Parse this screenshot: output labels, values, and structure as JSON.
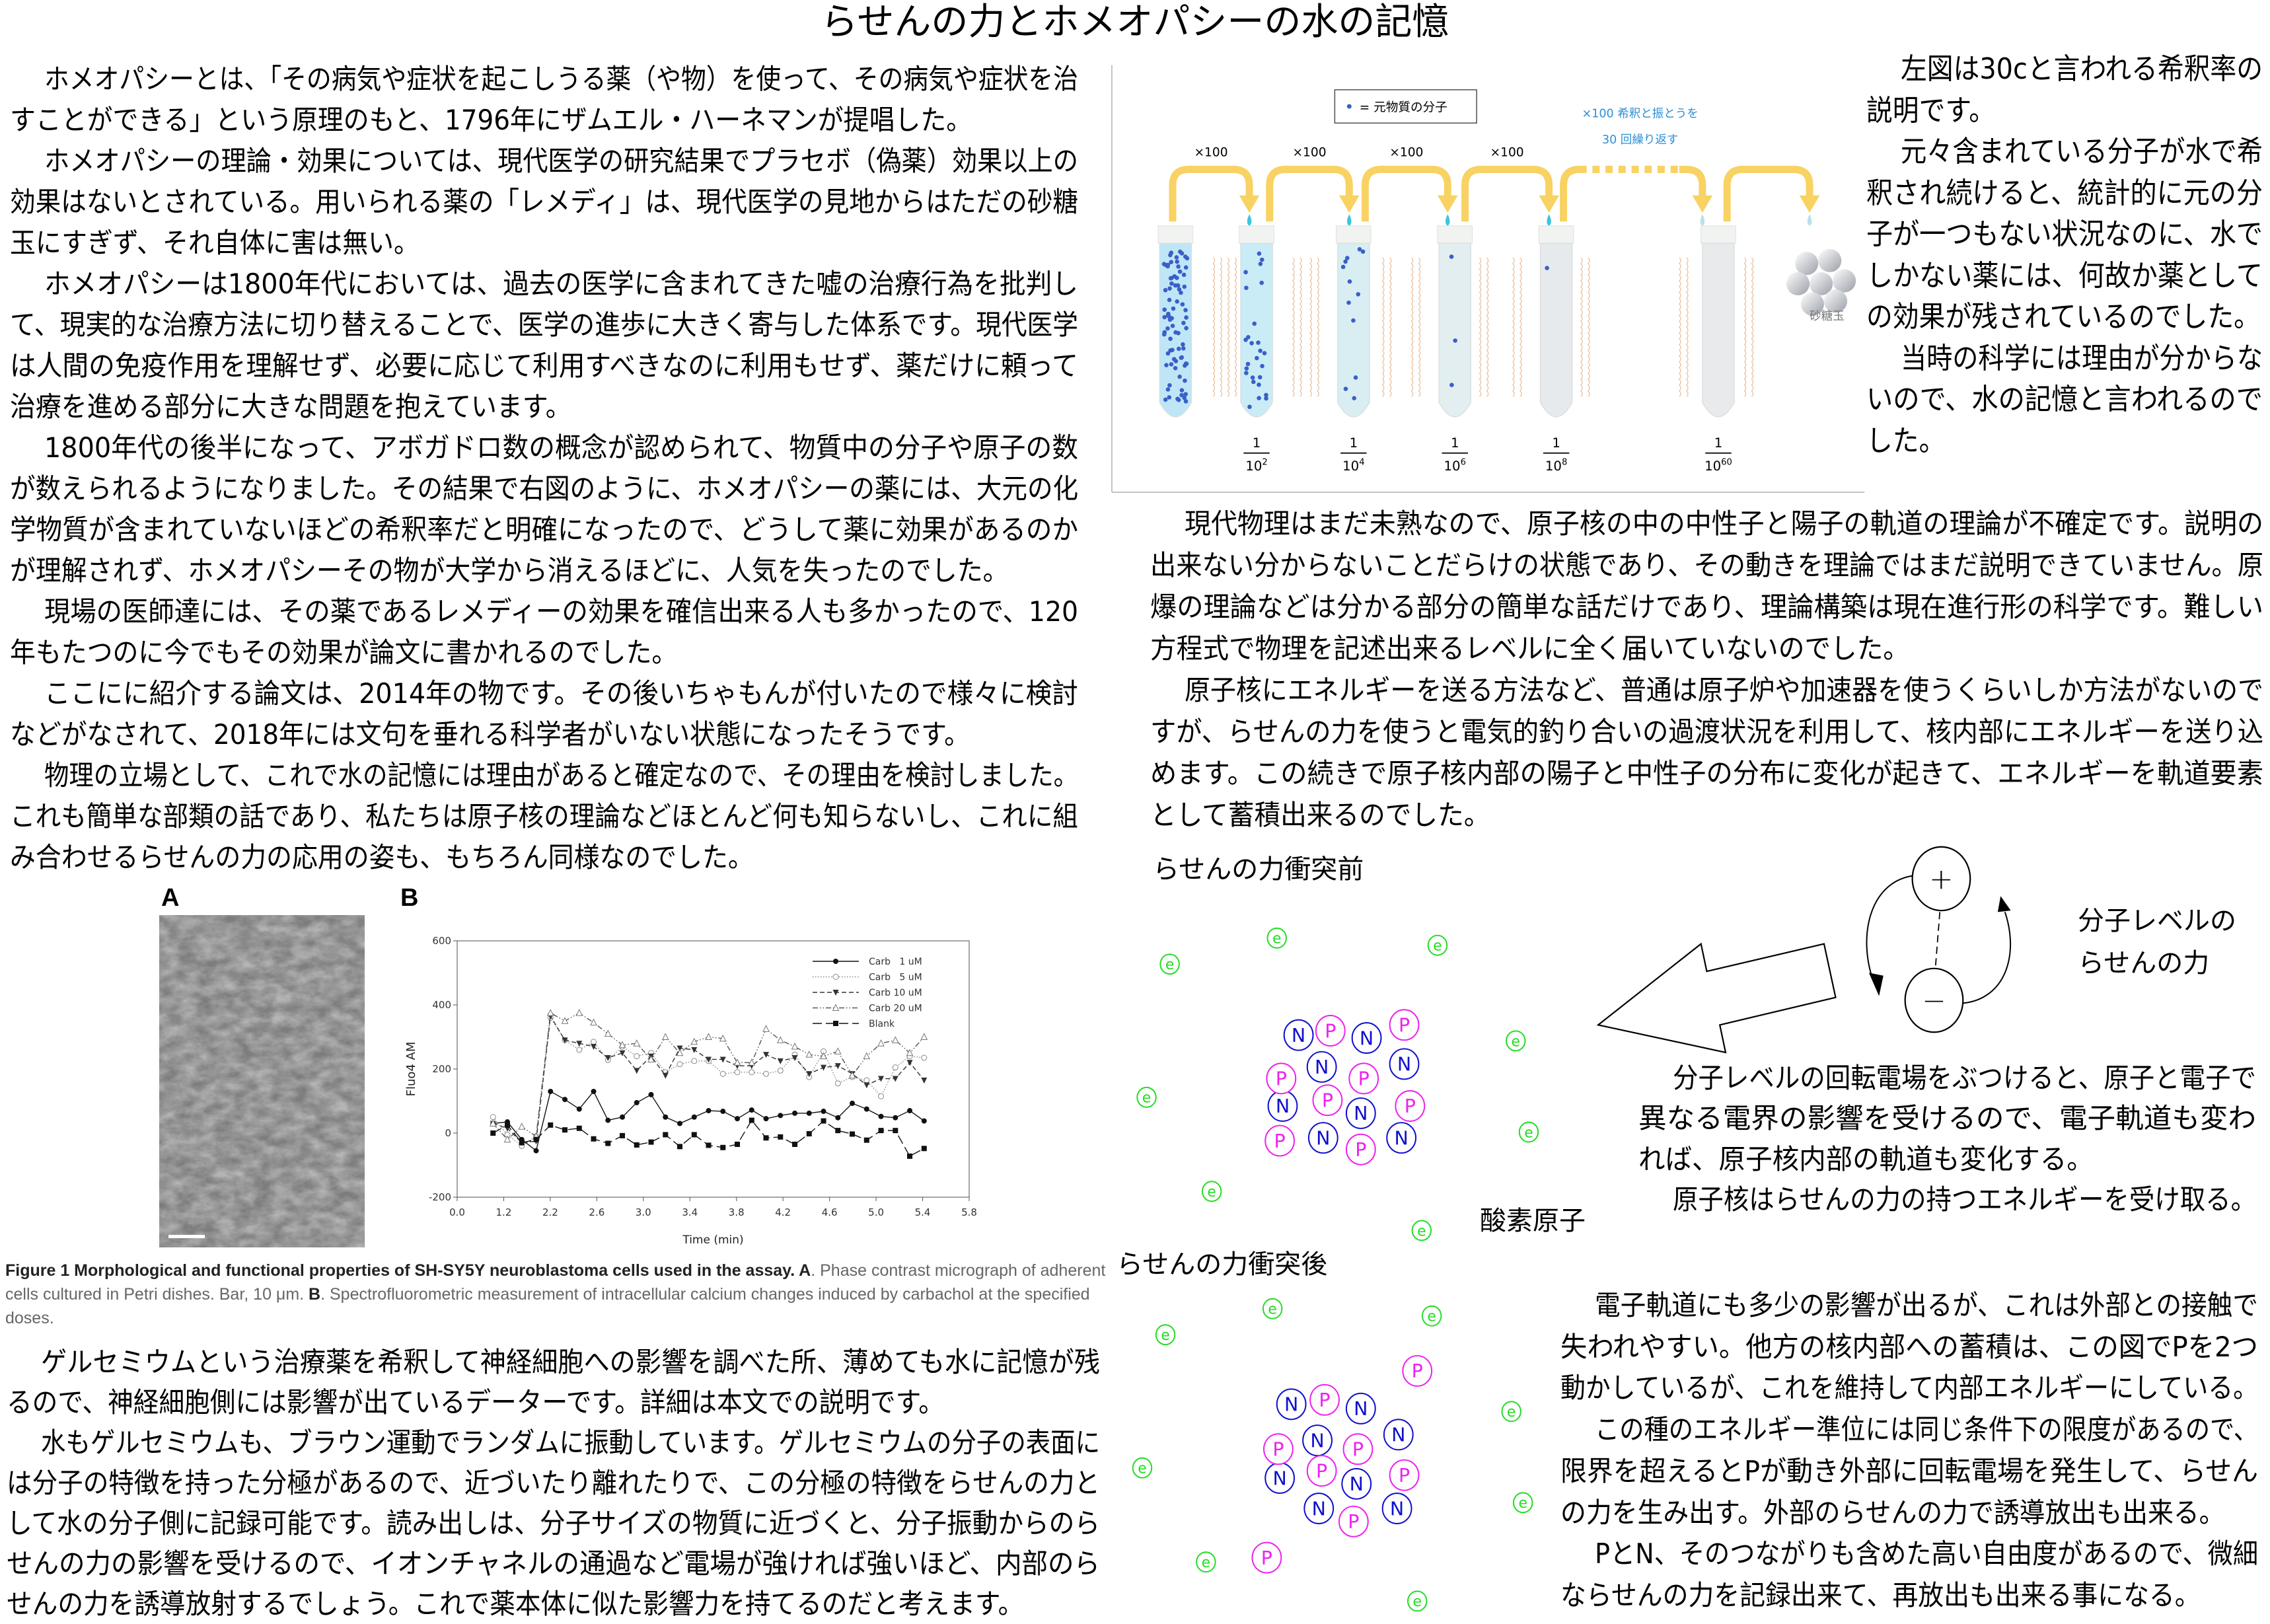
{
  "title": "らせんの力とホメオパシーの水の記憶",
  "left_text": {
    "paragraphs": [
      [
        "ホメオパシーとは、「その病気や症状を起こしうる薬（や物）を使って、その病気や症状を治",
        "すことができる」という原理のもと、1796年にザムエル・ハーネマンが提唱した。"
      ],
      [
        "ホメオパシーの理論・効果については、現代医学の研究結果でプラセボ（偽薬）効果以上の",
        "効果はないとされている。用いられる薬の「レメディ」は、現代医学の見地からはただの砂糖",
        "玉にすぎず、それ自体に害は無い。"
      ],
      [
        "ホメオパシーは1800年代においては、過去の医学に含まれてきた嘘の治療行為を批判し",
        "て、現実的な治療方法に切り替えることで、医学の進歩に大きく寄与した体系です。現代医学",
        "は人間の免疫作用を理解せず、必要に応じて利用すべきなのに利用もせず、薬だけに頼って",
        "治療を進める部分に大きな問題を抱えています。"
      ],
      [
        "1800年代の後半になって、アボガドロ数の概念が認められて、物質中の分子や原子の数",
        "が数えられるようになりました。その結果で右図のように、ホメオパシーの薬には、大元の化",
        "学物質が含まれていないほどの希釈率だと明確になったので、どうして薬に効果があるのか",
        "が理解されず、ホメオパシーその物が大学から消えるほどに、人気を失ったのでした。"
      ],
      [
        "現場の医師達には、その薬であるレメディーの効果を確信出来る人も多かったので、120",
        "年もたつのに今でもその効果が論文に書かれるのでした。"
      ],
      [
        "ここにに紹介する論文は、2014年の物です。その後いちゃもんが付いたので様々に検討",
        "などがなされて、2018年には文句を垂れる科学者がいない状態になったそうです。"
      ],
      [
        "物理の立場として、これで水の記憶には理由があると確定なので、その理由を検討しました。",
        "これも簡単な部類の話であり、私たちは原子核の理論などほとんど何も知らないし、これに組",
        "み合わせるらせんの力の応用の姿も、もちろん同様なのでした。"
      ]
    ]
  },
  "bottom_left_text": {
    "paragraphs": [
      [
        "ゲルセミウムという治療薬を希釈して神経細胞への影響を調べた所、薄めても水に記憶が残",
        "るので、神経細胞側には影響が出ているデーターです。詳細は本文での説明です。"
      ],
      [
        "水もゲルセミウムも、ブラウン運動でランダムに振動しています。ゲルセミウムの分子の表面に",
        "は分子の特徴を持った分極があるので、近づいたり離れたりで、この分極の特徴をらせんの力と",
        "して水の分子側に記録可能です。読み出しは、分子サイズの物質に近づくと、分子振動からのら",
        "せんの力の影響を受けるので、イオンチャネルの通過など電場が強ければ強いほど、内部のら",
        "せんの力を誘導放射するでしょう。これで薬本体に似た影響力を持てるのだと考えます。"
      ]
    ]
  },
  "right_top_text": {
    "paragraphs": [
      [
        "左図は30cと言われる希釈率の",
        "説明です。"
      ],
      [
        "元々含まれている分子が水で希",
        "釈され続けると、統計的に元の分",
        "子が一つもない状況なのに、水で",
        "しかない薬には、何故か薬として",
        "の効果が残されているのでした。"
      ],
      [
        "当時の科学には理由が分からな",
        "いので、水の記憶と言われるので",
        "した。"
      ]
    ]
  },
  "mid_right_text": {
    "paragraphs": [
      [
        "現代物理はまだ未熟なので、原子核の中の中性子と陽子の軌道の理論が不確定です。説明の",
        "出来ない分からないことだらけの状態であり、その動きを理論ではまだ説明できていません。原",
        "爆の理論などは分かる部分の簡単な話だけであり、理論構築は現在進行形の科学です。難しい",
        "方程式で物理を記述出来るレベルに全く届いていないのでした。"
      ],
      [
        "原子核にエネルギーを送る方法など、普通は原子炉や加速器を使うくらいしか方法がないので",
        "すが、らせんの力を使うと電気的釣り合いの過渡状況を利用して、核内部にエネルギーを送り込",
        "めます。この続きで原子核内部の陽子と中性子の分布に変化が起きて、エネルギーを軌道要素",
        "として蓄積出来るのでした。"
      ]
    ]
  },
  "dipole_text": {
    "paragraphs": [
      [
        "分子レベルの回転電場をぶつけると、原子と電子で",
        "異なる電界の影響を受けるので、電子軌道も変わ",
        "れば、原子核内部の軌道も変化する。"
      ],
      [
        "原子核はらせんの力の持つエネルギーを受け取る。"
      ]
    ]
  },
  "bottom_right_text": {
    "paragraphs": [
      [
        "電子軌道にも多少の影響が出るが、これは外部との接触で",
        "失われやすい。他方の核内部への蓄積は、この図でPを2つ",
        "動かしているが、これを維持して内部エネルギーにしている。"
      ],
      [
        "この種のエネルギー準位には同じ条件下の限度があるので、",
        "限界を超えるとPが動き外部に回転電場を発生して、らせん",
        "の力を生み出す。外部のらせんの力で誘導放出も出来る。"
      ],
      [
        "PとN、そのつながりも含めた高い自由度があるので、微細",
        "ならせんの力を記録出来て、再放出も出来る事になる。"
      ]
    ]
  },
  "dilution_figure": {
    "legend": "= 元物質の分子",
    "step_label": "×100",
    "repeat_note": [
      "×100 希釈と振とうを",
      "30 回繰り返す"
    ],
    "fractions": [
      {
        "num": "1",
        "base": "10",
        "exp": "2"
      },
      {
        "num": "1",
        "base": "10",
        "exp": "4"
      },
      {
        "num": "1",
        "base": "10",
        "exp": "6"
      },
      {
        "num": "1",
        "base": "10",
        "exp": "8"
      },
      {
        "num": "1",
        "base": "10",
        "exp": "60"
      }
    ],
    "sugar_label": "砂糖玉",
    "molecule_counts": [
      80,
      26,
      12,
      3,
      1,
      0
    ],
    "colors": {
      "arrow": "#F8D262",
      "molecule": "#3A5FC8",
      "note": "#2C8FD6",
      "wave": "#E8B890"
    }
  },
  "atom_diagram": {
    "before_label": "らせんの力衝突前",
    "after_label": "らせんの力衝突後",
    "oxygen_label": "酸素原子",
    "dipole_label": [
      "分子レベルの",
      "らせんの力"
    ],
    "plus": "+",
    "minus": "−",
    "electron": "e",
    "proton": "P",
    "neutron": "N",
    "colors": {
      "electron": "#22DD22",
      "proton": "#EE22EE",
      "neutron": "#1010CC"
    }
  },
  "figure1": {
    "panel_a": "A",
    "panel_b": "B",
    "caption": {
      "bold1": "Figure 1 Morphological and functional properties of SH-SY5Y neuroblastoma cells used in the assay. A",
      "text1": ". Phase contrast micrograph of adherent cells cultured in Petri dishes. Bar, 10 μm. ",
      "bold2": "B",
      "text2": ". Spectrofluorometric measurement of intracellular calcium changes induced by carbachol at the specified doses."
    }
  },
  "chart_data": {
    "type": "line",
    "xlabel": "Time (min)",
    "ylabel": "Fluo4 AM",
    "ylim": [
      -200,
      600
    ],
    "y_ticks": [
      "600",
      "400",
      "200",
      "0",
      "-200"
    ],
    "x_tick_labels": [
      "0.0",
      "1.2",
      "2.2",
      "2.6",
      "3.0",
      "3.4",
      "3.8",
      "4.2",
      "4.6",
      "5.0",
      "5.4",
      "5.8"
    ],
    "grid": false,
    "legend_position": "top-right",
    "series": [
      {
        "name": "Carb   1 uM",
        "style": "solid",
        "marker": "filled-circle",
        "values": [
          30,
          35,
          -20,
          -55,
          130,
          105,
          75,
          130,
          40,
          50,
          95,
          120,
          50,
          30,
          50,
          70,
          68,
          45,
          72,
          45,
          55,
          62,
          62,
          68,
          48,
          93,
          75,
          52,
          48,
          70,
          38
        ]
      },
      {
        "name": "Carb   5 uM",
        "style": "dotted",
        "marker": "open-circle",
        "values": [
          50,
          -5,
          -40,
          -10,
          360,
          290,
          260,
          285,
          228,
          270,
          240,
          250,
          190,
          215,
          225,
          225,
          185,
          190,
          190,
          185,
          195,
          245,
          175,
          255,
          155,
          175,
          165,
          115,
          205,
          240,
          235
        ]
      },
      {
        "name": "Carb 10 uM",
        "style": "dashed",
        "marker": "filled-triangle-down",
        "values": [
          30,
          15,
          -30,
          -25,
          365,
          290,
          280,
          270,
          235,
          250,
          195,
          240,
          180,
          265,
          260,
          230,
          230,
          210,
          210,
          245,
          225,
          235,
          185,
          205,
          210,
          185,
          150,
          170,
          170,
          220,
          165
        ]
      },
      {
        "name": "Carb 20 uM",
        "style": "dash-dot-dot",
        "marker": "open-triangle",
        "values": [
          30,
          -20,
          20,
          -10,
          375,
          350,
          375,
          345,
          310,
          275,
          280,
          230,
          300,
          250,
          285,
          300,
          295,
          220,
          220,
          325,
          290,
          270,
          245,
          240,
          255,
          180,
          240,
          280,
          290,
          250,
          300
        ]
      },
      {
        "name": "Blank",
        "style": "long-dash",
        "marker": "filled-square",
        "values": [
          0,
          25,
          -30,
          -20,
          25,
          10,
          15,
          -18,
          -32,
          -8,
          -37,
          -28,
          -5,
          -42,
          -5,
          -38,
          -45,
          -35,
          40,
          -15,
          -12,
          -35,
          -2,
          38,
          8,
          -3,
          -22,
          8,
          8,
          -72,
          -48
        ]
      }
    ]
  }
}
